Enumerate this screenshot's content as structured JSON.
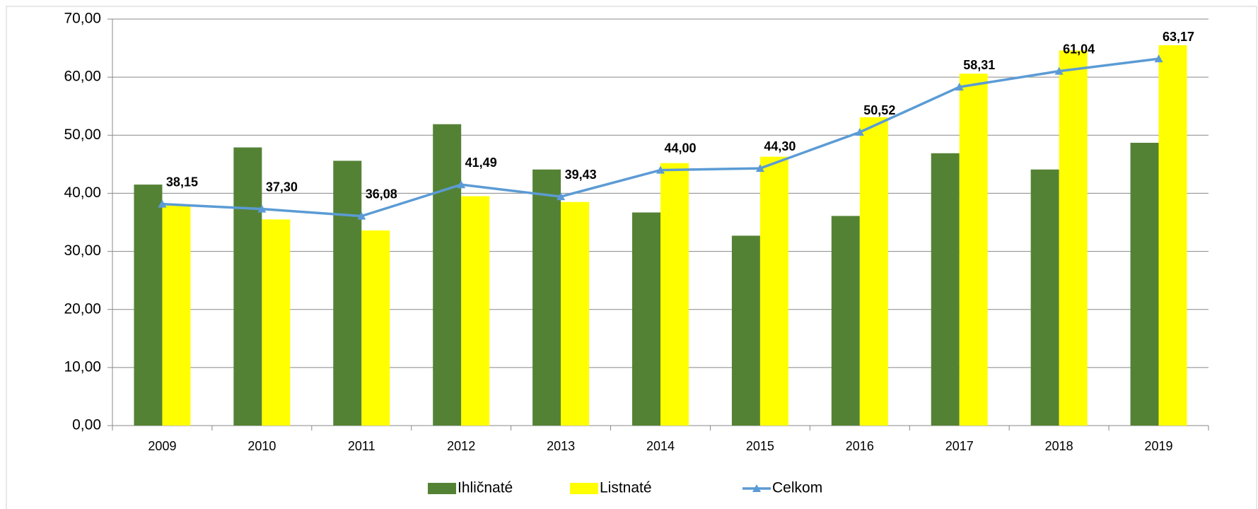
{
  "chart_data": {
    "type": "bar_line",
    "categories": [
      "2009",
      "2010",
      "2011",
      "2012",
      "2013",
      "2014",
      "2015",
      "2016",
      "2017",
      "2018",
      "2019"
    ],
    "series": [
      {
        "name": "Ihličnaté",
        "type": "bar",
        "color": "#548235",
        "values": [
          41.5,
          47.9,
          45.6,
          51.9,
          44.1,
          36.7,
          32.7,
          36.1,
          46.9,
          44.1,
          48.7
        ]
      },
      {
        "name": "Listnaté",
        "type": "bar",
        "color": "#ffff00",
        "values": [
          37.9,
          35.5,
          33.6,
          39.5,
          38.5,
          45.2,
          46.3,
          53.1,
          60.6,
          64.6,
          65.5
        ]
      },
      {
        "name": "Celkom",
        "type": "line",
        "color": "#5b9bd5",
        "values": [
          38.15,
          37.3,
          36.08,
          41.49,
          39.43,
          44.0,
          44.3,
          50.52,
          58.31,
          61.04,
          63.17
        ],
        "value_labels": [
          "38,15",
          "37,30",
          "36,08",
          "41,49",
          "39,43",
          "44,00",
          "44,30",
          "50,52",
          "58,31",
          "61,04",
          "63,17"
        ]
      }
    ],
    "ylim": [
      0,
      70
    ],
    "yticks": [
      {
        "value": 0,
        "label": "0,00"
      },
      {
        "value": 10,
        "label": "10,00"
      },
      {
        "value": 20,
        "label": "20,00"
      },
      {
        "value": 30,
        "label": "30,00"
      },
      {
        "value": 40,
        "label": "40,00"
      },
      {
        "value": 50,
        "label": "50,00"
      },
      {
        "value": 60,
        "label": "60,00"
      },
      {
        "value": 70,
        "label": "70,00"
      }
    ],
    "grid": true,
    "legend": "bottom"
  }
}
